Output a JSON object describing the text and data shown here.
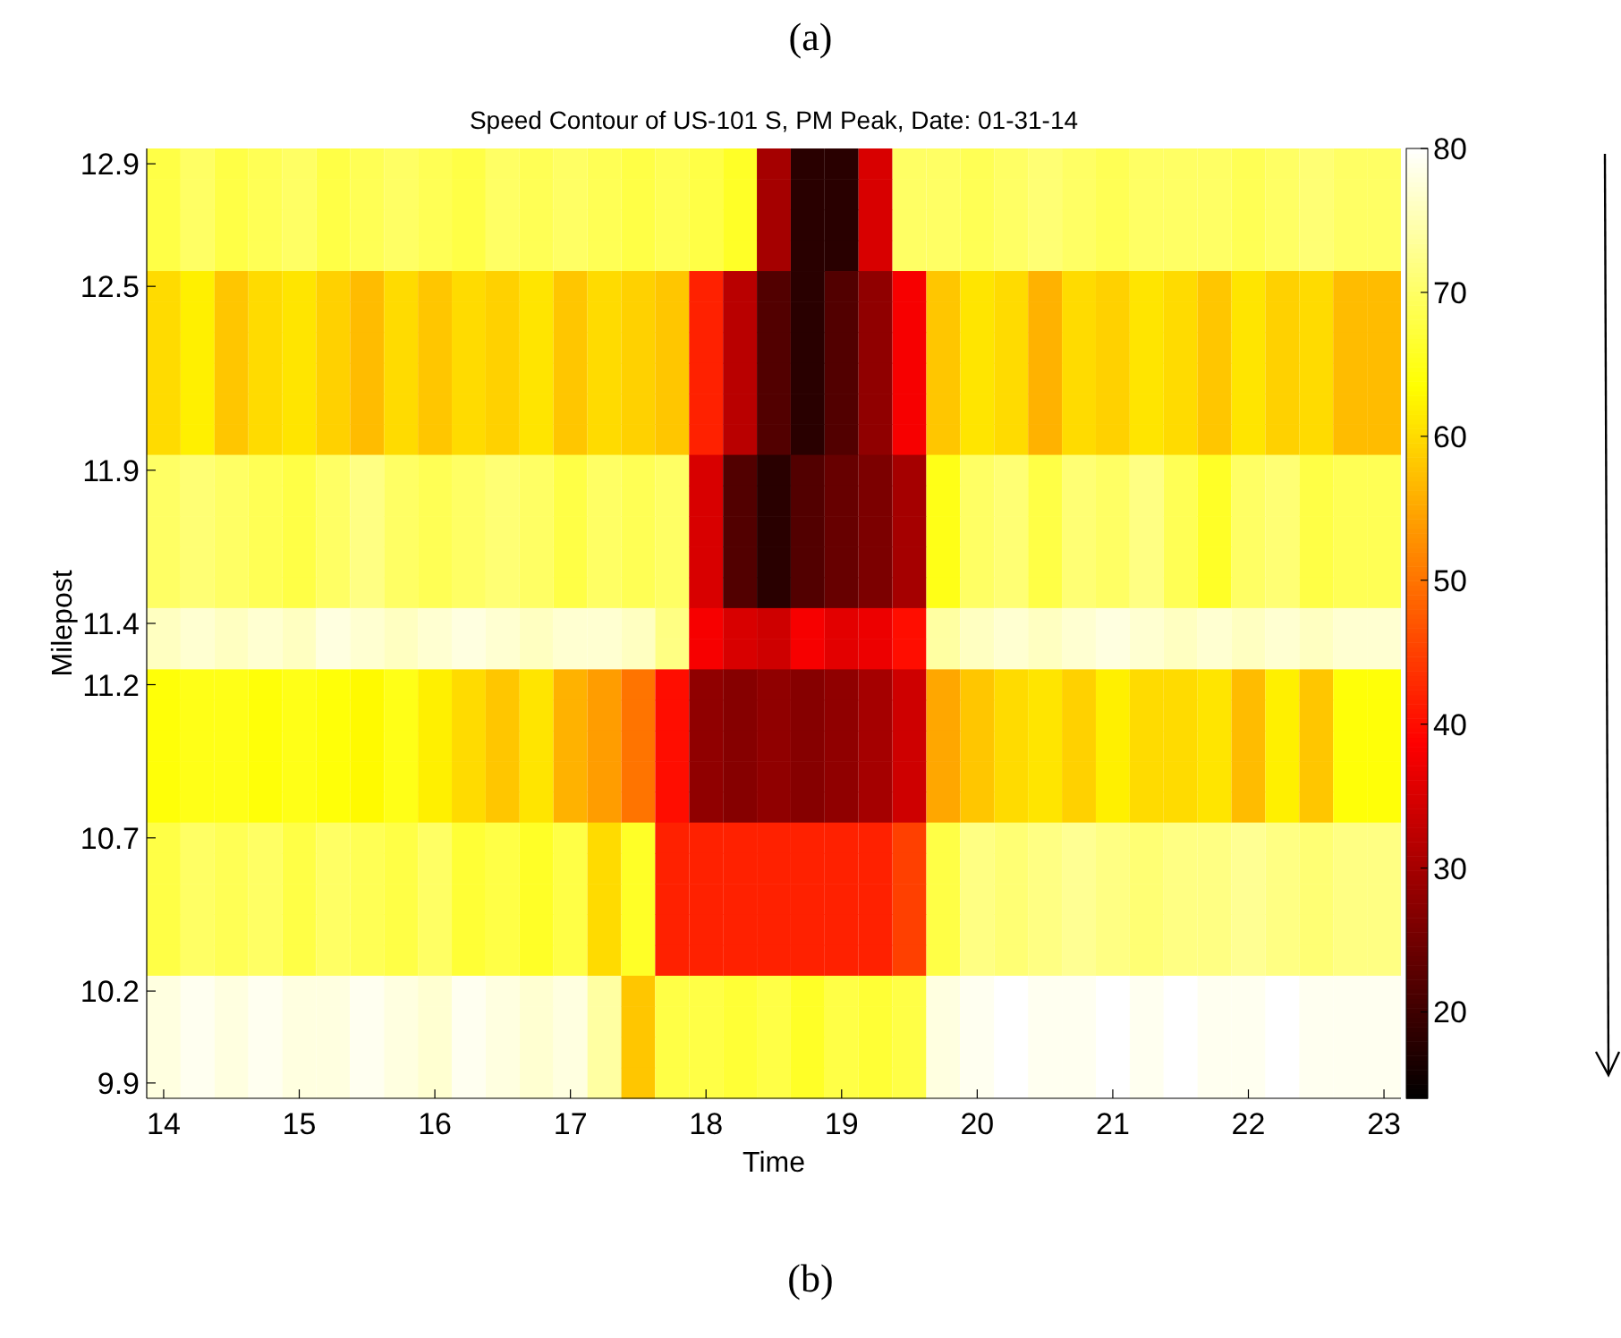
{
  "chart_data": {
    "type": "heatmap",
    "title": "Speed Contour of US-101 S, PM Peak, Date: 01-31-14",
    "xlabel": "Time",
    "ylabel": "Milepost",
    "annotations": [
      "(a)",
      "(b)"
    ],
    "categories": [
      "14",
      null,
      null,
      null,
      "15",
      null,
      null,
      null,
      "16",
      null,
      null,
      null,
      "17",
      null,
      null,
      null,
      "18",
      null,
      null,
      null,
      "19",
      null,
      null,
      null,
      "20",
      null,
      null,
      null,
      "21",
      null,
      null,
      null,
      "22",
      null,
      null,
      null,
      "23"
    ],
    "y_categories": [
      "12.9",
      null,
      null,
      null,
      "12.5",
      null,
      null,
      null,
      null,
      null,
      "11.9",
      null,
      null,
      null,
      null,
      "11.4",
      null,
      "11.2",
      null,
      null,
      null,
      null,
      "10.7",
      null,
      null,
      null,
      null,
      "10.2",
      null,
      null,
      "9.9"
    ],
    "cells": [
      [
        68,
        70,
        68,
        69,
        70,
        68,
        69,
        70,
        69,
        68,
        70,
        69,
        70,
        69,
        68,
        69,
        68,
        66,
        30,
        18,
        18,
        35,
        70,
        70,
        69,
        70,
        71,
        70,
        69,
        70,
        70,
        70,
        69,
        70,
        71,
        70,
        70
      ],
      [
        68,
        70,
        68,
        69,
        70,
        68,
        69,
        70,
        69,
        68,
        70,
        69,
        70,
        69,
        68,
        69,
        68,
        66,
        30,
        18,
        18,
        35,
        70,
        70,
        69,
        70,
        71,
        70,
        69,
        70,
        70,
        70,
        69,
        70,
        71,
        70,
        70
      ],
      [
        68,
        70,
        68,
        69,
        70,
        68,
        69,
        70,
        69,
        68,
        70,
        69,
        70,
        69,
        68,
        69,
        68,
        66,
        30,
        18,
        18,
        35,
        70,
        70,
        69,
        70,
        71,
        70,
        69,
        70,
        70,
        70,
        69,
        70,
        71,
        70,
        70
      ],
      [
        68,
        70,
        68,
        69,
        70,
        68,
        69,
        70,
        69,
        68,
        70,
        69,
        70,
        69,
        68,
        69,
        68,
        66,
        30,
        18,
        18,
        35,
        70,
        70,
        69,
        70,
        71,
        70,
        69,
        70,
        70,
        70,
        69,
        70,
        71,
        70,
        70
      ],
      [
        60,
        62,
        58,
        60,
        61,
        59,
        57,
        60,
        58,
        60,
        59,
        61,
        58,
        60,
        59,
        58,
        42,
        32,
        22,
        18,
        22,
        28,
        38,
        58,
        61,
        60,
        56,
        60,
        59,
        61,
        60,
        58,
        61,
        59,
        60,
        57,
        57
      ],
      [
        60,
        62,
        58,
        60,
        61,
        59,
        57,
        60,
        58,
        60,
        59,
        61,
        58,
        60,
        59,
        58,
        42,
        32,
        22,
        18,
        22,
        28,
        38,
        58,
        61,
        60,
        56,
        60,
        59,
        61,
        60,
        58,
        61,
        59,
        60,
        57,
        57
      ],
      [
        60,
        62,
        58,
        60,
        61,
        59,
        57,
        60,
        58,
        60,
        59,
        61,
        58,
        60,
        59,
        58,
        42,
        32,
        22,
        18,
        22,
        28,
        38,
        58,
        61,
        60,
        56,
        60,
        59,
        61,
        60,
        58,
        61,
        59,
        60,
        57,
        57
      ],
      [
        60,
        62,
        58,
        60,
        61,
        59,
        57,
        60,
        58,
        60,
        59,
        61,
        58,
        60,
        59,
        58,
        42,
        32,
        22,
        18,
        22,
        28,
        38,
        58,
        61,
        60,
        56,
        60,
        59,
        61,
        60,
        58,
        61,
        59,
        60,
        57,
        57
      ],
      [
        60,
        62,
        58,
        60,
        61,
        59,
        57,
        60,
        58,
        60,
        59,
        61,
        58,
        60,
        59,
        58,
        42,
        32,
        22,
        18,
        22,
        28,
        38,
        58,
        61,
        60,
        56,
        60,
        59,
        61,
        60,
        58,
        61,
        59,
        60,
        57,
        57
      ],
      [
        60,
        62,
        58,
        60,
        61,
        59,
        57,
        60,
        58,
        60,
        59,
        61,
        58,
        60,
        59,
        58,
        42,
        32,
        22,
        18,
        22,
        28,
        38,
        58,
        61,
        60,
        56,
        60,
        59,
        61,
        60,
        58,
        61,
        59,
        60,
        57,
        57
      ],
      [
        70,
        71,
        70,
        69,
        68,
        70,
        72,
        70,
        69,
        70,
        71,
        70,
        68,
        70,
        69,
        70,
        35,
        22,
        18,
        22,
        24,
        26,
        30,
        65,
        70,
        71,
        68,
        71,
        70,
        72,
        69,
        66,
        70,
        71,
        68,
        69,
        69
      ],
      [
        70,
        71,
        70,
        69,
        68,
        70,
        72,
        70,
        69,
        70,
        71,
        70,
        68,
        70,
        69,
        70,
        35,
        22,
        18,
        22,
        24,
        26,
        30,
        65,
        70,
        71,
        68,
        71,
        70,
        72,
        69,
        66,
        70,
        71,
        68,
        69,
        69
      ],
      [
        70,
        71,
        70,
        69,
        68,
        70,
        72,
        70,
        69,
        70,
        71,
        70,
        68,
        70,
        69,
        70,
        35,
        22,
        18,
        22,
        24,
        26,
        30,
        65,
        70,
        71,
        68,
        71,
        70,
        72,
        69,
        66,
        70,
        71,
        68,
        69,
        69
      ],
      [
        70,
        71,
        70,
        69,
        68,
        70,
        72,
        70,
        69,
        70,
        71,
        70,
        68,
        70,
        69,
        70,
        35,
        22,
        18,
        22,
        24,
        26,
        30,
        65,
        70,
        71,
        68,
        71,
        70,
        72,
        69,
        66,
        70,
        71,
        68,
        69,
        69
      ],
      [
        70,
        71,
        70,
        69,
        68,
        70,
        72,
        70,
        69,
        70,
        71,
        70,
        68,
        70,
        69,
        70,
        35,
        22,
        18,
        22,
        24,
        26,
        30,
        65,
        70,
        71,
        68,
        71,
        70,
        72,
        69,
        66,
        70,
        71,
        68,
        69,
        69
      ],
      [
        76,
        77,
        76,
        77,
        76,
        78,
        77,
        76,
        77,
        78,
        77,
        76,
        77,
        77,
        76,
        72,
        38,
        35,
        34,
        38,
        36,
        37,
        40,
        74,
        76,
        77,
        76,
        77,
        78,
        77,
        76,
        77,
        76,
        77,
        76,
        77,
        77
      ],
      [
        76,
        77,
        76,
        77,
        76,
        78,
        77,
        76,
        77,
        78,
        77,
        76,
        77,
        77,
        76,
        72,
        38,
        35,
        34,
        38,
        36,
        37,
        40,
        74,
        76,
        77,
        76,
        77,
        78,
        77,
        76,
        77,
        76,
        77,
        76,
        77,
        77
      ],
      [
        64,
        65,
        65,
        64,
        65,
        64,
        63,
        65,
        62,
        60,
        58,
        61,
        56,
        54,
        50,
        40,
        28,
        27,
        28,
        27,
        28,
        30,
        34,
        55,
        58,
        60,
        61,
        59,
        62,
        60,
        60,
        61,
        57,
        62,
        58,
        64,
        64
      ],
      [
        64,
        65,
        65,
        64,
        65,
        64,
        63,
        65,
        62,
        60,
        58,
        61,
        56,
        54,
        50,
        40,
        28,
        27,
        28,
        27,
        28,
        30,
        34,
        55,
        58,
        60,
        61,
        59,
        62,
        60,
        60,
        61,
        57,
        62,
        58,
        64,
        64
      ],
      [
        64,
        65,
        65,
        64,
        65,
        64,
        63,
        65,
        62,
        60,
        58,
        61,
        56,
        54,
        50,
        40,
        28,
        27,
        28,
        27,
        28,
        30,
        34,
        55,
        58,
        60,
        61,
        59,
        62,
        60,
        60,
        61,
        57,
        62,
        58,
        64,
        64
      ],
      [
        64,
        65,
        65,
        64,
        65,
        64,
        63,
        65,
        62,
        60,
        58,
        61,
        56,
        54,
        50,
        40,
        28,
        27,
        28,
        27,
        28,
        30,
        34,
        55,
        58,
        60,
        61,
        59,
        62,
        60,
        60,
        61,
        57,
        62,
        58,
        64,
        64
      ],
      [
        64,
        65,
        65,
        64,
        65,
        64,
        63,
        65,
        62,
        60,
        58,
        61,
        56,
        54,
        50,
        40,
        28,
        27,
        28,
        27,
        28,
        30,
        34,
        55,
        58,
        60,
        61,
        59,
        62,
        60,
        60,
        61,
        57,
        62,
        58,
        64,
        64
      ],
      [
        68,
        70,
        69,
        70,
        68,
        70,
        69,
        68,
        70,
        67,
        68,
        66,
        68,
        60,
        66,
        42,
        42,
        42,
        42,
        42,
        42,
        42,
        45,
        68,
        72,
        71,
        72,
        73,
        72,
        71,
        72,
        72,
        73,
        72,
        71,
        72,
        72
      ],
      [
        68,
        70,
        69,
        70,
        68,
        70,
        69,
        68,
        70,
        67,
        68,
        66,
        68,
        60,
        66,
        42,
        42,
        42,
        42,
        42,
        42,
        42,
        45,
        68,
        72,
        71,
        72,
        73,
        72,
        71,
        72,
        72,
        73,
        72,
        71,
        72,
        72
      ],
      [
        68,
        70,
        69,
        70,
        68,
        70,
        69,
        68,
        70,
        67,
        68,
        66,
        68,
        60,
        66,
        42,
        42,
        42,
        42,
        42,
        42,
        42,
        45,
        68,
        72,
        71,
        72,
        73,
        72,
        71,
        72,
        72,
        73,
        72,
        71,
        72,
        72
      ],
      [
        68,
        70,
        69,
        70,
        68,
        70,
        69,
        68,
        70,
        67,
        68,
        66,
        68,
        60,
        66,
        42,
        42,
        42,
        42,
        42,
        42,
        42,
        45,
        68,
        72,
        71,
        72,
        73,
        72,
        71,
        72,
        72,
        73,
        72,
        71,
        72,
        72
      ],
      [
        68,
        70,
        69,
        70,
        68,
        70,
        69,
        68,
        70,
        67,
        68,
        66,
        68,
        60,
        66,
        42,
        42,
        42,
        42,
        42,
        42,
        42,
        45,
        68,
        72,
        71,
        72,
        73,
        72,
        71,
        72,
        72,
        73,
        72,
        71,
        72,
        72
      ],
      [
        78,
        79,
        78,
        79,
        78,
        78,
        79,
        78,
        77,
        79,
        78,
        77,
        78,
        74,
        58,
        68,
        68,
        67,
        68,
        66,
        68,
        67,
        68,
        78,
        79,
        80,
        79,
        79,
        80,
        79,
        80,
        79,
        79,
        80,
        79,
        79,
        79
      ],
      [
        78,
        79,
        78,
        79,
        78,
        78,
        79,
        78,
        77,
        79,
        78,
        77,
        78,
        74,
        58,
        68,
        68,
        67,
        68,
        66,
        68,
        67,
        68,
        78,
        79,
        80,
        79,
        79,
        80,
        79,
        80,
        79,
        79,
        80,
        79,
        79,
        79
      ],
      [
        78,
        79,
        78,
        79,
        78,
        78,
        79,
        78,
        77,
        79,
        78,
        77,
        78,
        74,
        58,
        68,
        68,
        67,
        68,
        66,
        68,
        67,
        68,
        78,
        79,
        80,
        79,
        79,
        80,
        79,
        80,
        79,
        79,
        80,
        79,
        79,
        79
      ],
      [
        78,
        79,
        78,
        79,
        78,
        78,
        79,
        78,
        77,
        79,
        78,
        77,
        78,
        74,
        58,
        68,
        68,
        67,
        68,
        66,
        68,
        67,
        68,
        78,
        79,
        80,
        79,
        79,
        80,
        79,
        80,
        79,
        79,
        80,
        79,
        79,
        79
      ]
    ],
    "clim": [
      14,
      80
    ],
    "cticks": [
      20,
      30,
      40,
      50,
      60,
      70,
      80
    ]
  }
}
